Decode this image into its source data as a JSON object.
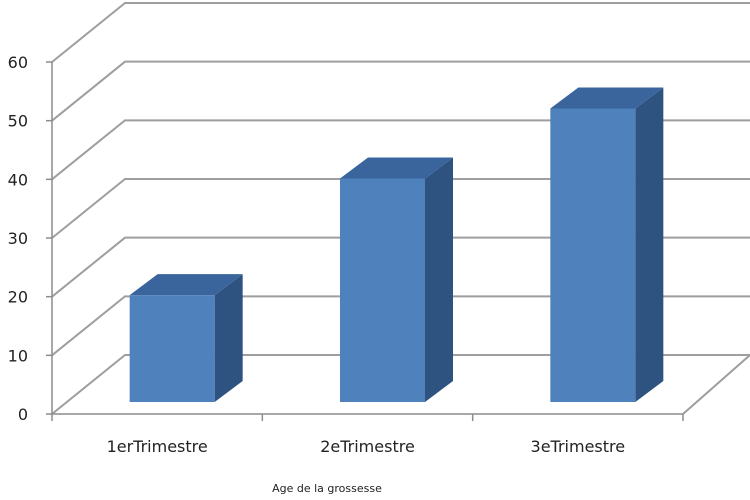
{
  "chart_data": {
    "type": "bar",
    "style": "3d-column",
    "categories": [
      "1erTrimestre",
      "2eTrimestre",
      "3eTrimestre"
    ],
    "values": [
      19,
      39,
      51
    ],
    "xlabel": "Age de la grossesse",
    "ylabel": "",
    "ylim": [
      0,
      60
    ],
    "yticks": [
      0,
      10,
      20,
      30,
      40,
      50,
      60
    ],
    "grid": true,
    "legend": "none",
    "colors": {
      "bar_front": "#4F81BD",
      "bar_top": "#3A659C",
      "bar_side": "#2F5380",
      "gridline": "#9E9E9E",
      "axis": "#8C8C8C",
      "text": "#222222",
      "background": "#FFFFFF"
    }
  }
}
